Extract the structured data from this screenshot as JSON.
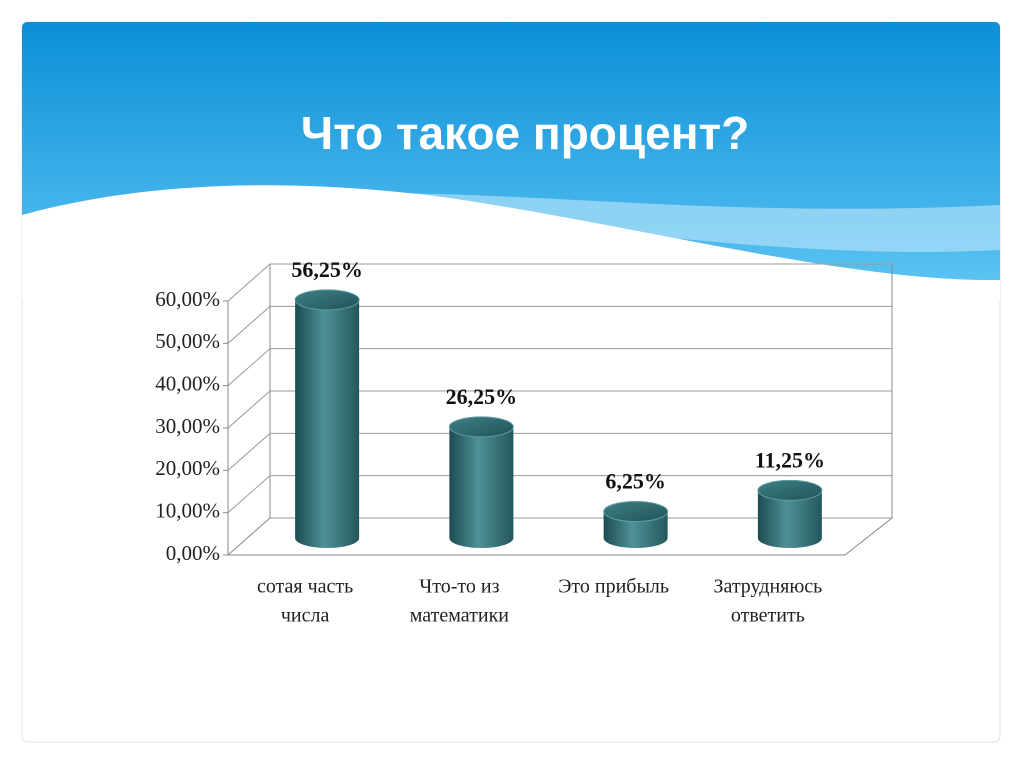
{
  "chart_data": {
    "type": "bar",
    "title": "Что такое процент?",
    "categories": [
      [
        "сотая часть",
        "числа"
      ],
      [
        "Что-то из",
        "математики"
      ],
      [
        "Это прибыль"
      ],
      [
        "Затрудняюсь",
        "ответить"
      ]
    ],
    "values": [
      56.25,
      26.25,
      6.25,
      11.25
    ],
    "value_labels": [
      "56,25%",
      "26,25%",
      "6,25%",
      "11,25%"
    ],
    "color": "#2e6e74",
    "ylim": [
      0,
      60
    ],
    "yticks": [
      {
        "value": 0,
        "label": "0,00%"
      },
      {
        "value": 10,
        "label": "10,00%"
      },
      {
        "value": 20,
        "label": "20,00%"
      },
      {
        "value": 30,
        "label": "30,00%"
      },
      {
        "value": 40,
        "label": "40,00%"
      },
      {
        "value": 50,
        "label": "50,00%"
      },
      {
        "value": 60,
        "label": "60,00%"
      }
    ],
    "grid": true
  }
}
